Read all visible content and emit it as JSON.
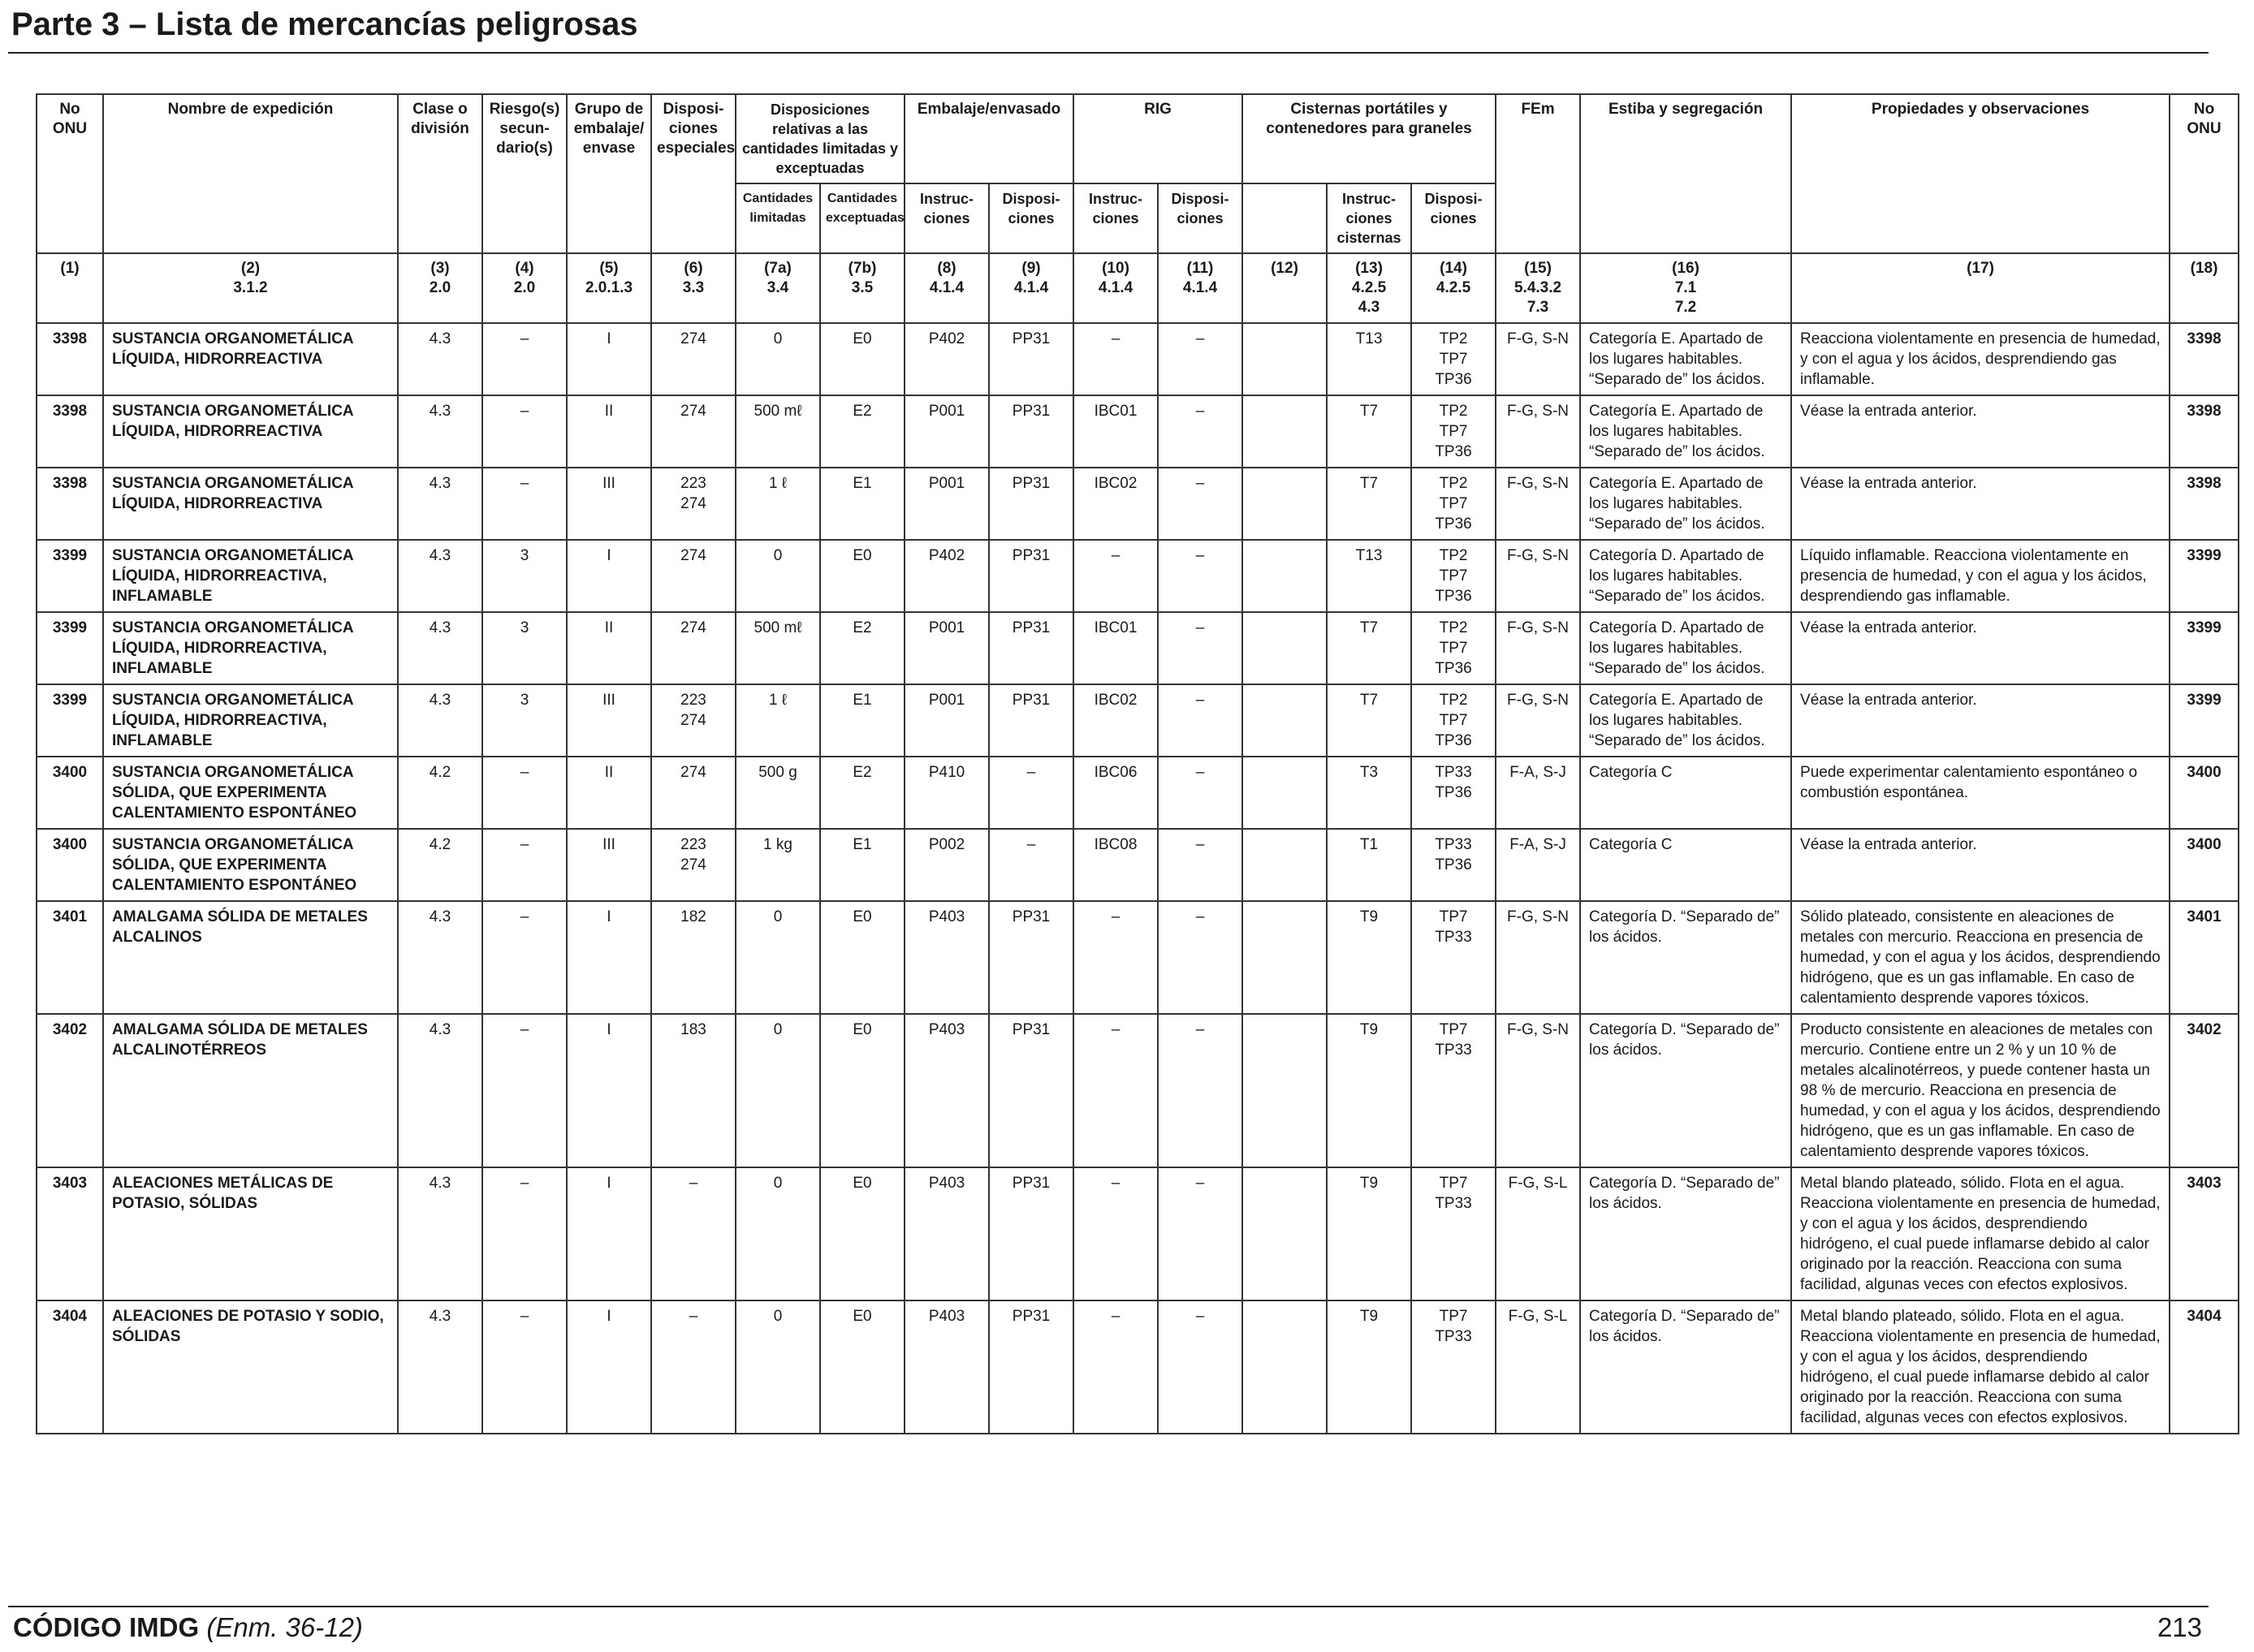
{
  "header": {
    "title": "Parte 3 – Lista de mercancías peligrosas"
  },
  "table": {
    "headers": {
      "onu": "No ONU",
      "nombre": "Nombre de expedición",
      "clase": "Clase o división",
      "riesgos": "Riesgo(s) secun- dario(s)",
      "grupo": "Grupo de embalaje/ envase",
      "disposiciones": "Disposi- ciones especiales",
      "limitadas": "Disposiciones relativas a las cantidades limitadas y exceptuadas",
      "limitadas_a": "Cantidades limitadas",
      "limitadas_b": "Cantidades exceptuadas",
      "embalaje": "Embalaje/envasado",
      "emb_instr": "Instruc- ciones",
      "emb_disp": "Disposi- ciones",
      "rig": "RIG",
      "rig_instr": "Instruc- ciones",
      "rig_disp": "Disposi- ciones",
      "cisternas": "Cisternas portátiles y contenedores para graneles",
      "cis_instr": "Instruc- ciones cisternas",
      "cis_disp": "Disposi- ciones",
      "fem": "FEm",
      "estiba": "Estiba y segregación",
      "propiedades": "Propiedades y observaciones",
      "onu2": "No ONU"
    },
    "number_row": [
      "(1)",
      "(2)\n3.1.2",
      "(3)\n2.0",
      "(4)\n2.0",
      "(5)\n2.0.1.3",
      "(6)\n3.3",
      "(7a)\n3.4",
      "(7b)\n3.5",
      "(8)\n4.1.4",
      "(9)\n4.1.4",
      "(10)\n4.1.4",
      "(11)\n4.1.4",
      "(12)",
      "(13)\n4.2.5\n4.3",
      "(14)\n4.2.5",
      "(15)\n5.4.3.2\n7.3",
      "(16)\n7.1\n7.2",
      "(17)",
      "(18)"
    ],
    "rows": [
      {
        "onu": "3398",
        "nombre": "SUSTANCIA ORGANOMETÁLICA LÍQUIDA, HIDRORREACTIVA",
        "clase": "4.3",
        "riesgos": "–",
        "grupo": "I",
        "disp": "274",
        "c7a": "0",
        "c7b": "E0",
        "c8": "P402",
        "c9": "PP31",
        "c10": "–",
        "c11": "–",
        "c12": "",
        "c13": "T13",
        "c14": "TP2\nTP7\nTP36",
        "c15": "F-G, S-N",
        "c16": "Categoría E. Apartado de los lugares habitables. “Separado de” los ácidos.",
        "c17": "Reacciona violentamente en presencia de humedad, y con el agua y los ácidos, desprendiendo gas inflamable.",
        "onu2": "3398"
      },
      {
        "onu": "3398",
        "nombre": "SUSTANCIA ORGANOMETÁLICA LÍQUIDA, HIDRORREACTIVA",
        "clase": "4.3",
        "riesgos": "–",
        "grupo": "II",
        "disp": "274",
        "c7a": "500 mℓ",
        "c7b": "E2",
        "c8": "P001",
        "c9": "PP31",
        "c10": "IBC01",
        "c11": "–",
        "c12": "",
        "c13": "T7",
        "c14": "TP2\nTP7\nTP36",
        "c15": "F-G, S-N",
        "c16": "Categoría E. Apartado de los lugares habitables. “Separado de” los ácidos.",
        "c17": "Véase la entrada anterior.",
        "onu2": "3398"
      },
      {
        "onu": "3398",
        "nombre": "SUSTANCIA ORGANOMETÁLICA LÍQUIDA, HIDRORREACTIVA",
        "clase": "4.3",
        "riesgos": "–",
        "grupo": "III",
        "disp": "223\n274",
        "c7a": "1 ℓ",
        "c7b": "E1",
        "c8": "P001",
        "c9": "PP31",
        "c10": "IBC02",
        "c11": "–",
        "c12": "",
        "c13": "T7",
        "c14": "TP2\nTP7\nTP36",
        "c15": "F-G, S-N",
        "c16": "Categoría E. Apartado de los lugares habitables. “Separado de” los ácidos.",
        "c17": "Véase la entrada anterior.",
        "onu2": "3398"
      },
      {
        "onu": "3399",
        "nombre": "SUSTANCIA ORGANOMETÁLICA LÍQUIDA, HIDRORREACTIVA, INFLAMABLE",
        "clase": "4.3",
        "riesgos": "3",
        "grupo": "I",
        "disp": "274",
        "c7a": "0",
        "c7b": "E0",
        "c8": "P402",
        "c9": "PP31",
        "c10": "–",
        "c11": "–",
        "c12": "",
        "c13": "T13",
        "c14": "TP2\nTP7\nTP36",
        "c15": "F-G, S-N",
        "c16": "Categoría D. Apartado de los lugares habitables. “Separado de” los ácidos.",
        "c17": "Líquido inflamable. Reacciona violentamente en presencia de humedad, y con el agua y los ácidos, desprendiendo gas inflamable.",
        "onu2": "3399"
      },
      {
        "onu": "3399",
        "nombre": "SUSTANCIA ORGANOMETÁLICA LÍQUIDA, HIDRORREACTIVA, INFLAMABLE",
        "clase": "4.3",
        "riesgos": "3",
        "grupo": "II",
        "disp": "274",
        "c7a": "500 mℓ",
        "c7b": "E2",
        "c8": "P001",
        "c9": "PP31",
        "c10": "IBC01",
        "c11": "–",
        "c12": "",
        "c13": "T7",
        "c14": "TP2\nTP7\nTP36",
        "c15": "F-G, S-N",
        "c16": "Categoría D. Apartado de los lugares habitables. “Separado de” los ácidos.",
        "c17": "Véase la entrada anterior.",
        "onu2": "3399"
      },
      {
        "onu": "3399",
        "nombre": "SUSTANCIA ORGANOMETÁLICA LÍQUIDA, HIDRORREACTIVA, INFLAMABLE",
        "clase": "4.3",
        "riesgos": "3",
        "grupo": "III",
        "disp": "223\n274",
        "c7a": "1 ℓ",
        "c7b": "E1",
        "c8": "P001",
        "c9": "PP31",
        "c10": "IBC02",
        "c11": "–",
        "c12": "",
        "c13": "T7",
        "c14": "TP2\nTP7\nTP36",
        "c15": "F-G, S-N",
        "c16": "Categoría E. Apartado de los lugares habitables. “Separado de” los ácidos.",
        "c17": "Véase la entrada anterior.",
        "onu2": "3399"
      },
      {
        "onu": "3400",
        "nombre": "SUSTANCIA ORGANOMETÁLICA SÓLIDA, QUE EXPERIMENTA CALENTAMIENTO ESPONTÁNEO",
        "clase": "4.2",
        "riesgos": "–",
        "grupo": "II",
        "disp": "274",
        "c7a": "500 g",
        "c7b": "E2",
        "c8": "P410",
        "c9": "–",
        "c10": "IBC06",
        "c11": "–",
        "c12": "",
        "c13": "T3",
        "c14": "TP33\nTP36",
        "c15": "F-A, S-J",
        "c16": "Categoría C",
        "c17": "Puede experimentar calentamiento espontáneo o combustión espontánea.",
        "onu2": "3400"
      },
      {
        "onu": "3400",
        "nombre": "SUSTANCIA ORGANOMETÁLICA SÓLIDA, QUE EXPERIMENTA CALENTAMIENTO ESPONTÁNEO",
        "clase": "4.2",
        "riesgos": "–",
        "grupo": "III",
        "disp": "223\n274",
        "c7a": "1 kg",
        "c7b": "E1",
        "c8": "P002",
        "c9": "–",
        "c10": "IBC08",
        "c11": "–",
        "c12": "",
        "c13": "T1",
        "c14": "TP33\nTP36",
        "c15": "F-A, S-J",
        "c16": "Categoría C",
        "c17": "Véase la entrada anterior.",
        "onu2": "3400"
      },
      {
        "onu": "3401",
        "nombre": "AMALGAMA SÓLIDA DE METALES ALCALINOS",
        "clase": "4.3",
        "riesgos": "–",
        "grupo": "I",
        "disp": "182",
        "c7a": "0",
        "c7b": "E0",
        "c8": "P403",
        "c9": "PP31",
        "c10": "–",
        "c11": "–",
        "c12": "",
        "c13": "T9",
        "c14": "TP7\nTP33",
        "c15": "F-G, S-N",
        "c16": "Categoría D. “Separado de” los ácidos.",
        "c17": "Sólido plateado, consistente en aleaciones de metales con mercurio. Reacciona en presencia de humedad, y con el agua y los ácidos, desprendiendo hidrógeno, que es un gas inflamable. En caso de calentamiento desprende vapores tóxicos.",
        "onu2": "3401"
      },
      {
        "onu": "3402",
        "nombre": "AMALGAMA SÓLIDA DE METALES ALCALINOTÉRREOS",
        "clase": "4.3",
        "riesgos": "–",
        "grupo": "I",
        "disp": "183",
        "c7a": "0",
        "c7b": "E0",
        "c8": "P403",
        "c9": "PP31",
        "c10": "–",
        "c11": "–",
        "c12": "",
        "c13": "T9",
        "c14": "TP7\nTP33",
        "c15": "F-G, S-N",
        "c16": "Categoría D. “Separado de” los ácidos.",
        "c17": "Producto consistente en aleaciones de metales con mercurio. Contiene entre un 2 % y un 10 % de metales alcalinotérreos, y puede contener hasta un 98 % de mercurio. Reacciona en presencia de humedad, y con el agua y los ácidos, desprendiendo hidrógeno, que es un gas inflamable. En caso de calentamiento desprende vapores tóxicos.",
        "onu2": "3402"
      },
      {
        "onu": "3403",
        "nombre": "ALEACIONES METÁLICAS DE POTASIO, SÓLIDAS",
        "clase": "4.3",
        "riesgos": "–",
        "grupo": "I",
        "disp": "–",
        "c7a": "0",
        "c7b": "E0",
        "c8": "P403",
        "c9": "PP31",
        "c10": "–",
        "c11": "–",
        "c12": "",
        "c13": "T9",
        "c14": "TP7\nTP33",
        "c15": "F-G, S-L",
        "c16": "Categoría D. “Separado de” los ácidos.",
        "c17": "Metal blando plateado, sólido. Flota en el agua. Reacciona violentamente en presencia de humedad, y con el agua y los ácidos, desprendiendo hidrógeno, el cual puede inflamarse debido al calor originado por la reacción. Reacciona con suma facilidad, algunas veces con efectos explosivos.",
        "onu2": "3403"
      },
      {
        "onu": "3404",
        "nombre": "ALEACIONES DE POTASIO Y SODIO, SÓLIDAS",
        "clase": "4.3",
        "riesgos": "–",
        "grupo": "I",
        "disp": "–",
        "c7a": "0",
        "c7b": "E0",
        "c8": "P403",
        "c9": "PP31",
        "c10": "–",
        "c11": "–",
        "c12": "",
        "c13": "T9",
        "c14": "TP7\nTP33",
        "c15": "F-G, S-L",
        "c16": "Categoría D. “Separado de” los ácidos.",
        "c17": "Metal blando plateado, sólido. Flota en el agua. Reacciona violentamente en presencia de humedad, y con el agua y los ácidos, desprendiendo hidrógeno, el cual puede inflamarse debido al calor originado por la reacción. Reacciona con suma facilidad, algunas veces con efectos explosivos.",
        "onu2": "3404"
      }
    ]
  },
  "footer": {
    "code": "CÓDIGO IMDG",
    "edition": "(Enm. 36-12)",
    "page": "213"
  }
}
